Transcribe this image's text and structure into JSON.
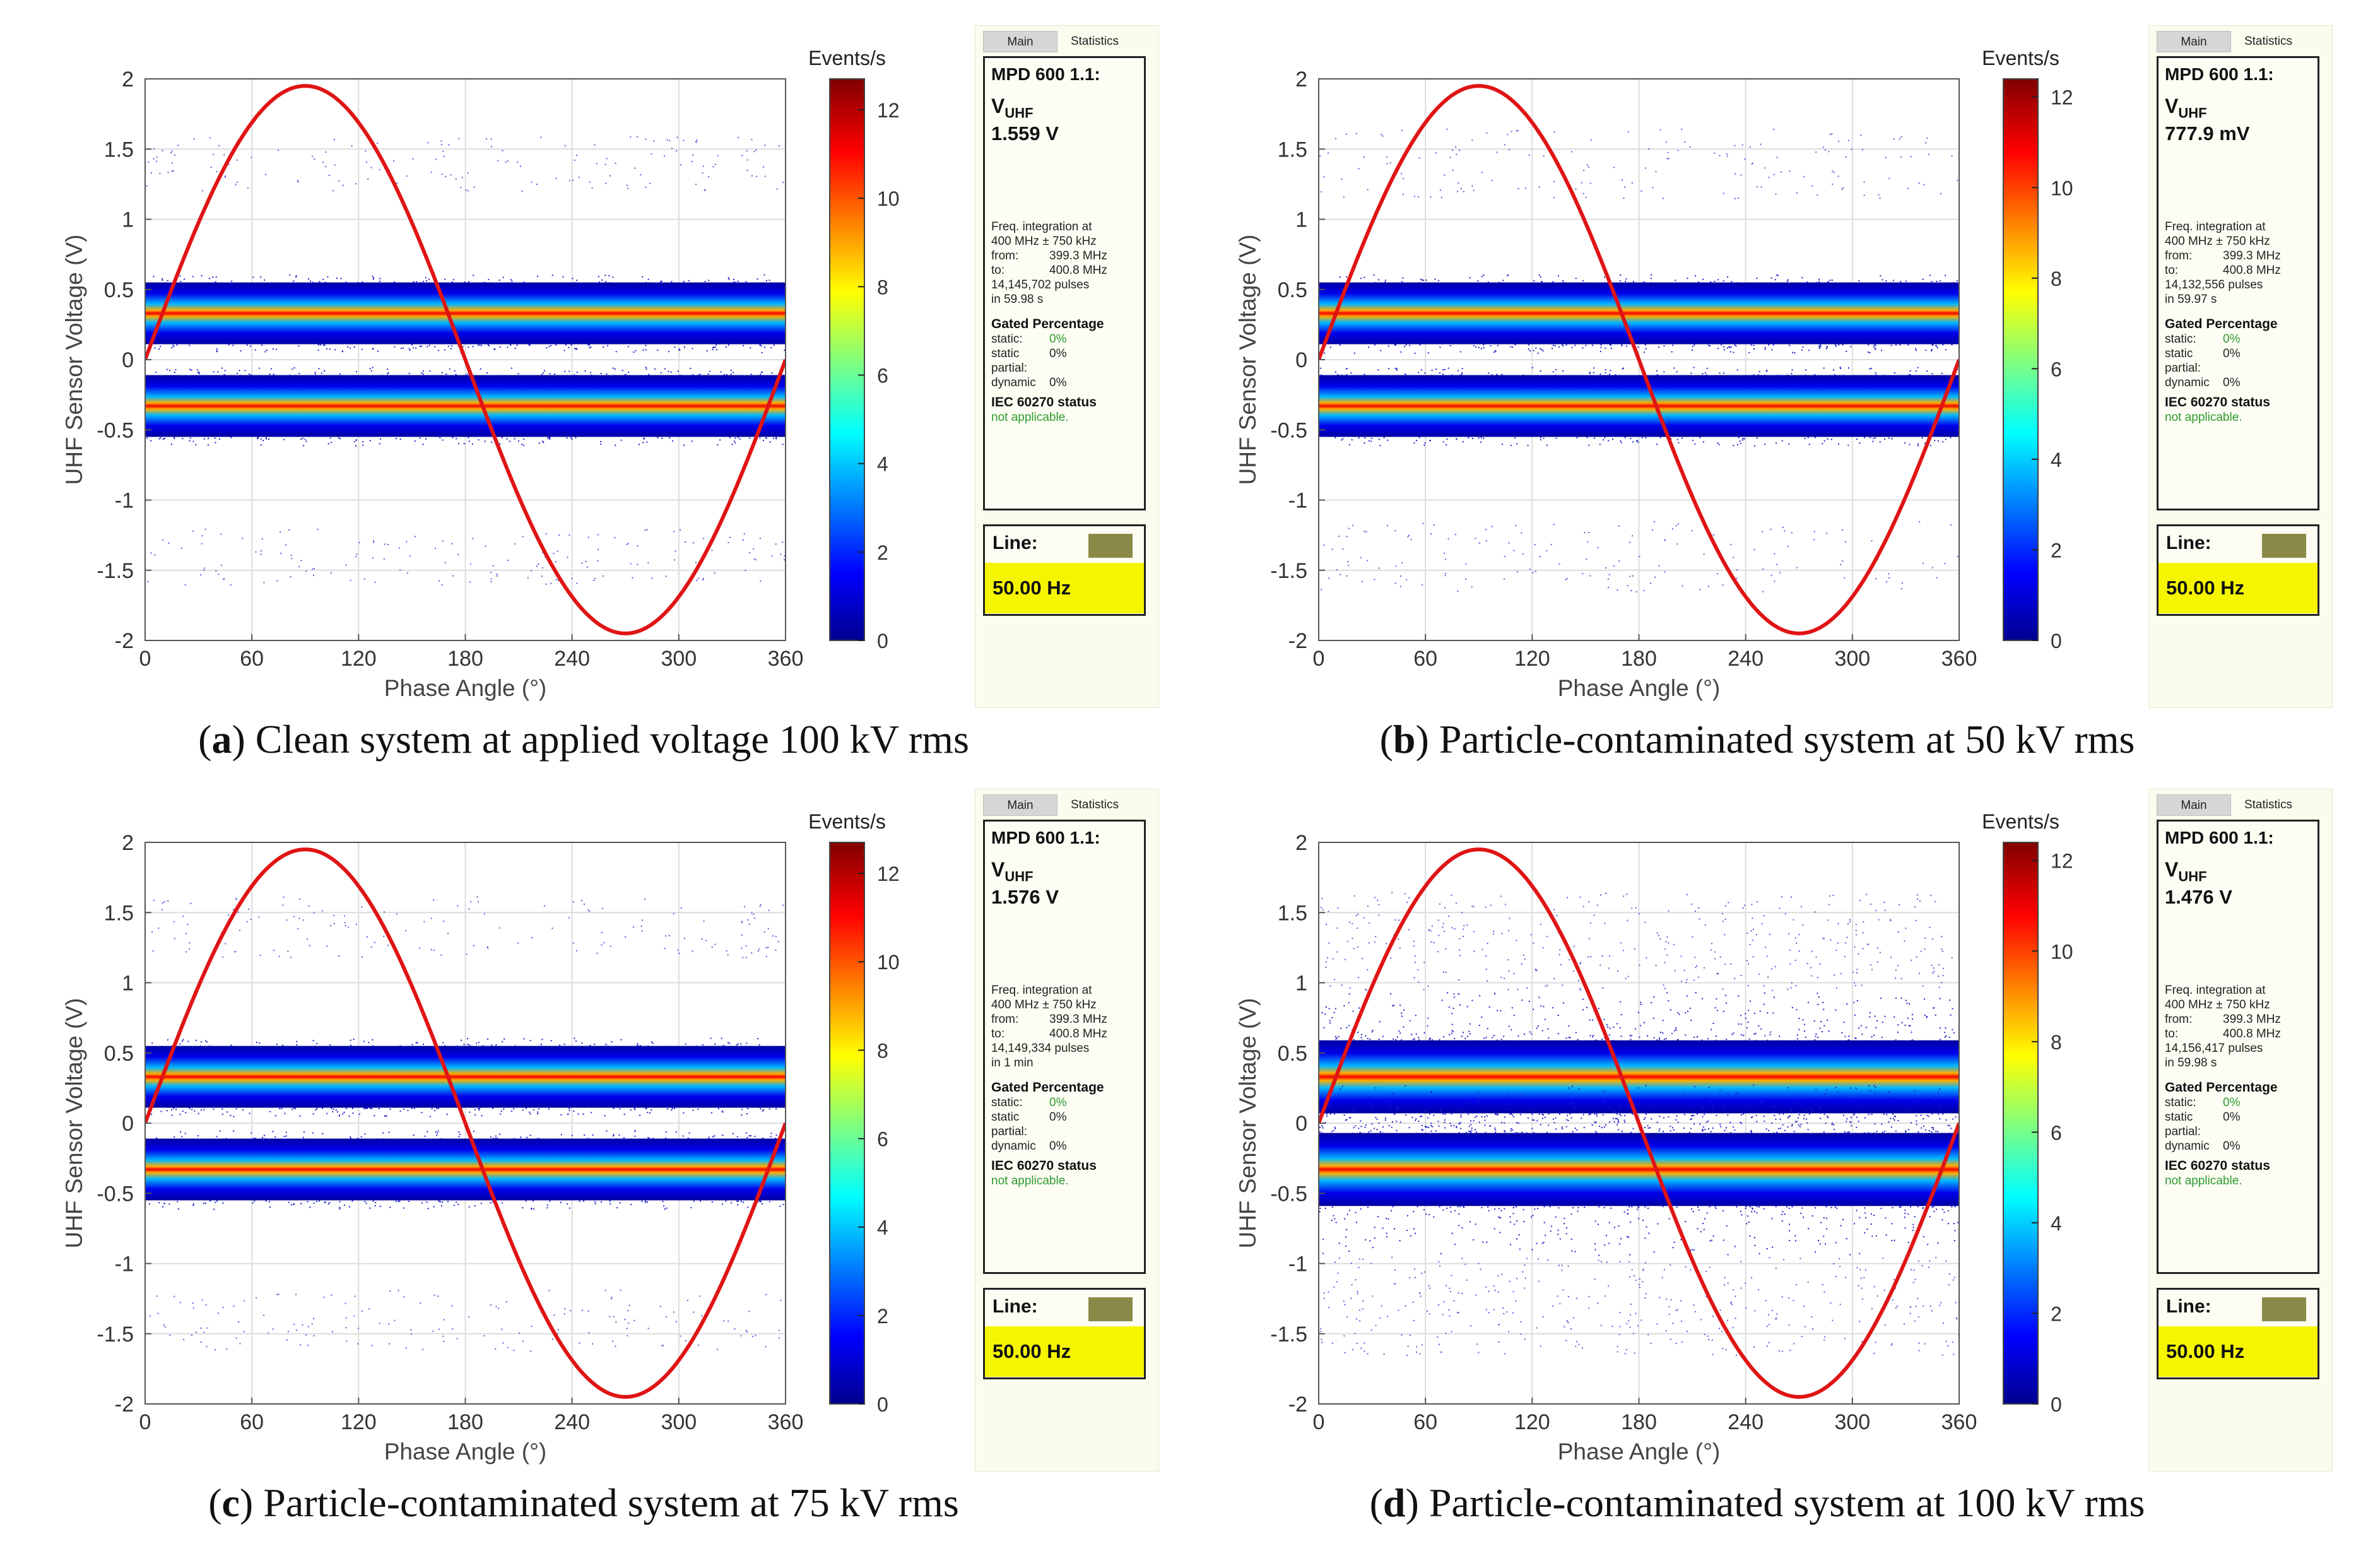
{
  "colors": {
    "curve": "#e01414",
    "swatch": "#8a8a48",
    "highlight": "#f5f500",
    "status_green": "#2e9a2e"
  },
  "chart_data": [
    {
      "type": "scatter",
      "subplot": "a",
      "caption_letter": "a",
      "caption_text": "Clean system at applied voltage 100 kV rms",
      "xlabel": "Phase Angle (°)",
      "ylabel": "UHF Sensor Voltage (V)",
      "xlim": [
        0,
        360
      ],
      "ylim": [
        -2,
        2
      ],
      "xticks": [
        "0",
        "60",
        "120",
        "180",
        "240",
        "300",
        "360"
      ],
      "yticks": [
        "2",
        "1.5",
        "1",
        "0.5",
        "0",
        "-0.5",
        "-1",
        "-1.5",
        "-2"
      ],
      "grid": true,
      "colorbar": {
        "label": "Events/s",
        "range": [
          0,
          12.7
        ],
        "ticks": [
          "0",
          "2",
          "4",
          "6",
          "8",
          "10",
          "12"
        ]
      },
      "reference_curve": {
        "type": "sine",
        "amplitude": 1.95,
        "period": 360
      },
      "bands": [
        {
          "center": 0.33,
          "half_width": 0.22
        },
        {
          "center": -0.33,
          "half_width": 0.22
        }
      ],
      "sparse_clusters": [
        {
          "center": 1.4,
          "spread": 0.2
        },
        {
          "center": -1.4,
          "spread": 0.2
        }
      ],
      "noise_level": "low",
      "stats": {
        "tabs": [
          "Main",
          "Statistics"
        ],
        "title": "MPD 600 1.1:",
        "quantity": "V",
        "quantity_sub": "UHF",
        "value": "1.559 V",
        "freq_line1": "Freq. integration at",
        "freq_line2": "400 MHz ± 750 kHz",
        "from_label": "from:",
        "from_value": "399.3 MHz",
        "to_label": "to:",
        "to_value": "400.8 MHz",
        "pulses": "14,145,702 pulses",
        "duration": "in 59.98 s",
        "gated_title": "Gated Percentage",
        "static_label": "static:",
        "static_value": "0%",
        "static_partial_label": "static partial:",
        "static_partial_value": "0%",
        "dynamic_label": "dynamic",
        "dynamic_value": "0%",
        "iec_title": "IEC 60270 status",
        "iec_value": "not applicable.",
        "line_label": "Line:",
        "line_freq": "50.00 Hz"
      }
    },
    {
      "type": "scatter",
      "subplot": "b",
      "caption_letter": "b",
      "caption_text": "Particle-contaminated system at 50 kV rms",
      "xlabel": "Phase Angle (°)",
      "ylabel": "UHF Sensor Voltage (V)",
      "xlim": [
        0,
        360
      ],
      "ylim": [
        -2,
        2
      ],
      "xticks": [
        "0",
        "60",
        "120",
        "180",
        "240",
        "300",
        "360"
      ],
      "yticks": [
        "2",
        "1.5",
        "1",
        "0.5",
        "0",
        "-0.5",
        "-1",
        "-1.5",
        "-2"
      ],
      "grid": true,
      "colorbar": {
        "label": "Events/s",
        "range": [
          0,
          12.4
        ],
        "ticks": [
          "0",
          "2",
          "4",
          "6",
          "8",
          "10",
          "12"
        ]
      },
      "reference_curve": {
        "type": "sine",
        "amplitude": 1.95,
        "period": 360
      },
      "bands": [
        {
          "center": 0.33,
          "half_width": 0.22
        },
        {
          "center": -0.33,
          "half_width": 0.22
        }
      ],
      "sparse_clusters": [
        {
          "center": 1.4,
          "spread": 0.25
        },
        {
          "center": -1.4,
          "spread": 0.25
        }
      ],
      "noise_level": "low",
      "stats": {
        "tabs": [
          "Main",
          "Statistics"
        ],
        "title": "MPD 600 1.1:",
        "quantity": "V",
        "quantity_sub": "UHF",
        "value": "777.9 mV",
        "freq_line1": "Freq. integration at",
        "freq_line2": "400 MHz ± 750 kHz",
        "from_label": "from:",
        "from_value": "399.3 MHz",
        "to_label": "to:",
        "to_value": "400.8 MHz",
        "pulses": "14,132,556 pulses",
        "duration": "in 59.97 s",
        "gated_title": "Gated Percentage",
        "static_label": "static:",
        "static_value": "0%",
        "static_partial_label": "static partial:",
        "static_partial_value": "0%",
        "dynamic_label": "dynamic",
        "dynamic_value": "0%",
        "iec_title": "IEC 60270 status",
        "iec_value": "not applicable.",
        "line_label": "Line:",
        "line_freq": "50.00 Hz"
      }
    },
    {
      "type": "scatter",
      "subplot": "c",
      "caption_letter": "c",
      "caption_text": "Particle-contaminated system at 75 kV rms",
      "xlabel": "Phase Angle (°)",
      "ylabel": "UHF Sensor Voltage (V)",
      "xlim": [
        0,
        360
      ],
      "ylim": [
        -2,
        2
      ],
      "xticks": [
        "0",
        "60",
        "120",
        "180",
        "240",
        "300",
        "360"
      ],
      "yticks": [
        "2",
        "1.5",
        "1",
        "0.5",
        "0",
        "-0.5",
        "-1",
        "-1.5",
        "-2"
      ],
      "grid": true,
      "colorbar": {
        "label": "Events/s",
        "range": [
          0,
          12.7
        ],
        "ticks": [
          "0",
          "2",
          "4",
          "6",
          "8",
          "10",
          "12"
        ]
      },
      "reference_curve": {
        "type": "sine",
        "amplitude": 1.95,
        "period": 360
      },
      "bands": [
        {
          "center": 0.33,
          "half_width": 0.22
        },
        {
          "center": -0.33,
          "half_width": 0.22
        }
      ],
      "sparse_clusters": [
        {
          "center": 1.4,
          "spread": 0.22
        },
        {
          "center": -1.4,
          "spread": 0.22
        }
      ],
      "noise_level": "low",
      "stats": {
        "tabs": [
          "Main",
          "Statistics"
        ],
        "title": "MPD 600 1.1:",
        "quantity": "V",
        "quantity_sub": "UHF",
        "value": "1.576 V",
        "freq_line1": "Freq. integration at",
        "freq_line2": "400 MHz ± 750 kHz",
        "from_label": "from:",
        "from_value": "399.3 MHz",
        "to_label": "to:",
        "to_value": "400.8 MHz",
        "pulses": "14,149,334 pulses",
        "duration": "in  1 min",
        "gated_title": "Gated Percentage",
        "static_label": "static:",
        "static_value": "0%",
        "static_partial_label": "static partial:",
        "static_partial_value": "0%",
        "dynamic_label": "dynamic",
        "dynamic_value": "0%",
        "iec_title": "IEC 60270 status",
        "iec_value": "not applicable.",
        "line_label": "Line:",
        "line_freq": "50.00 Hz"
      }
    },
    {
      "type": "scatter",
      "subplot": "d",
      "caption_letter": "d",
      "caption_text": "Particle-contaminated system at 100 kV rms",
      "xlabel": "Phase Angle (°)",
      "ylabel": "UHF Sensor Voltage (V)",
      "xlim": [
        0,
        360
      ],
      "ylim": [
        -2,
        2
      ],
      "xticks": [
        "0",
        "60",
        "120",
        "180",
        "240",
        "300",
        "360"
      ],
      "yticks": [
        "2",
        "1.5",
        "1",
        "0.5",
        "0",
        "-0.5",
        "-1",
        "-1.5",
        "-2"
      ],
      "grid": true,
      "colorbar": {
        "label": "Events/s",
        "range": [
          0,
          12.4
        ],
        "ticks": [
          "0",
          "2",
          "4",
          "6",
          "8",
          "10",
          "12"
        ]
      },
      "reference_curve": {
        "type": "sine",
        "amplitude": 1.95,
        "period": 360
      },
      "bands": [
        {
          "center": 0.33,
          "half_width": 0.22
        },
        {
          "center": -0.33,
          "half_width": 0.22
        }
      ],
      "sparse_clusters": [
        {
          "center": 1.3,
          "spread": 0.35
        },
        {
          "center": -1.3,
          "spread": 0.35
        }
      ],
      "noise_level": "high",
      "stats": {
        "tabs": [
          "Main",
          "Statistics"
        ],
        "title": "MPD 600 1.1:",
        "quantity": "V",
        "quantity_sub": "UHF",
        "value": "1.476 V",
        "freq_line1": "Freq. integration at",
        "freq_line2": "400 MHz ± 750 kHz",
        "from_label": "from:",
        "from_value": "399.3 MHz",
        "to_label": "to:",
        "to_value": "400.8 MHz",
        "pulses": "14,156,417 pulses",
        "duration": "in 59.98 s",
        "gated_title": "Gated Percentage",
        "static_label": "static:",
        "static_value": "0%",
        "static_partial_label": "static partial:",
        "static_partial_value": "0%",
        "dynamic_label": "dynamic",
        "dynamic_value": "0%",
        "iec_title": "IEC 60270 status",
        "iec_value": "not applicable.",
        "line_label": "Line:",
        "line_freq": "50.00 Hz"
      }
    }
  ]
}
